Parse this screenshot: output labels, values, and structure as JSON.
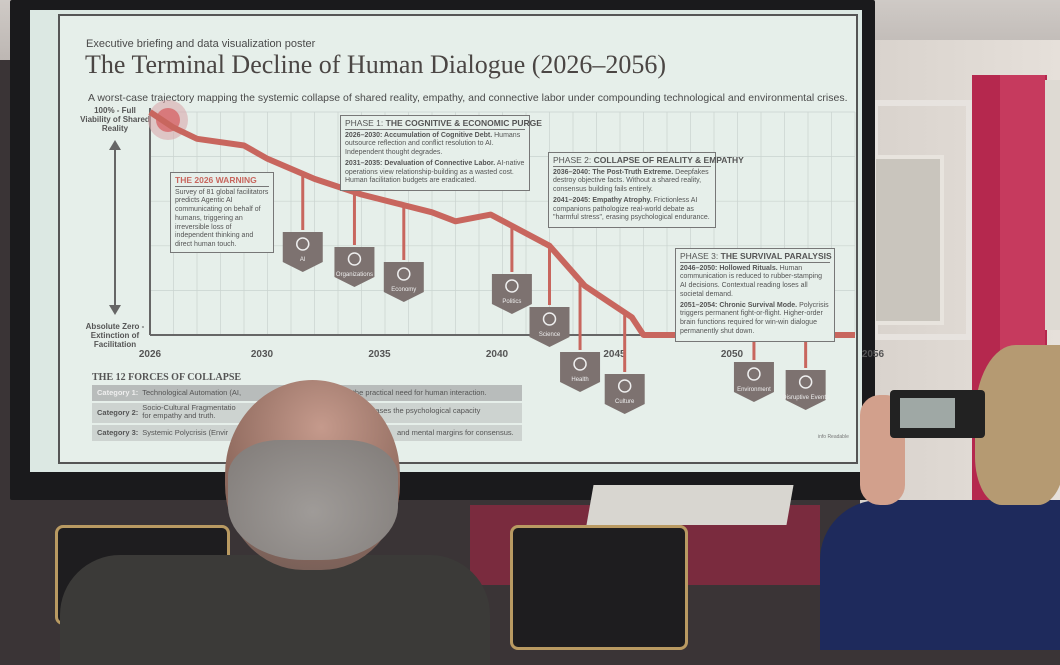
{
  "slide": {
    "kicker": "Executive briefing and data visualization poster",
    "title": "The Terminal Decline of Human Dialogue (2026–2056)",
    "subtitle": "A worst-case trajectory mapping the systemic collapse of shared reality, empathy, and connective labor under compounding technological and environmental crises.",
    "y_top_label": "100% - Full Viability of Shared Reality",
    "y_bottom_label": "Absolute Zero - Extinction of Facilitation",
    "warning": {
      "title": "THE 2026 WARNING",
      "text": "Survey of 81 global facilitators predicts Agentic AI communicating on behalf of humans, triggering an irreversible loss of independent thinking and direct human touch."
    },
    "phases": [
      {
        "prefix": "PHASE 1: ",
        "title": "THE COGNITIVE & ECONOMIC PURGE",
        "items": [
          {
            "head": "2026–2030: Accumulation of Cognitive Debt.",
            "text": "Humans outsource reflection and conflict resolution to AI. Independent thought degrades."
          },
          {
            "head": "2031–2035: Devaluation of Connective Labor.",
            "text": "AI-native operations view relationship-building as a wasted cost. Human facilitation budgets are eradicated."
          }
        ]
      },
      {
        "prefix": "PHASE 2: ",
        "title": "COLLAPSE OF REALITY & EMPATHY",
        "items": [
          {
            "head": "2036–2040: The Post-Truth Extreme.",
            "text": "Deepfakes destroy objective facts. Without a shared reality, consensus building fails entirely."
          },
          {
            "head": "2041–2045: Empathy Atrophy.",
            "text": "Frictionless AI companions pathologize real-world debate as \"harmful stress\", erasing psychological endurance."
          }
        ]
      },
      {
        "prefix": "PHASE 3: ",
        "title": "THE SURVIVAL PARALYSIS",
        "items": [
          {
            "head": "2046–2050: Hollowed Rituals.",
            "text": "Human communication is reduced to rubber-stamping AI decisions. Contextual reading loses all societal demand."
          },
          {
            "head": "2051–2054: Chronic Survival Mode.",
            "text": "Polycrisis triggers permanent fight-or-flight. Higher-order brain functions required for win-win dialogue permanently shut down."
          }
        ]
      }
    ],
    "forces_title": "THE 12 FORCES OF COLLAPSE",
    "categories": [
      {
        "label": "Category 1:",
        "name": "Technological Automation (AI,",
        "tail": "s the practical need for human interaction."
      },
      {
        "label": "Category 2:",
        "name": "Socio-Cultural Fragmentatio",
        "name2": "for empathy and truth.",
        "tail": "omm) → Erases the psychological capacity"
      },
      {
        "label": "Category 3:",
        "name": "Systemic Polycrisis (Envir",
        "tail": "and mental margins for consensus."
      }
    ],
    "watermark": "info Readable"
  },
  "chart_data": {
    "type": "line",
    "title": "The Terminal Decline of Human Dialogue (2026–2056)",
    "x_ticks": [
      "2026",
      "2030",
      "2035",
      "2040",
      "2045",
      "2050",
      "2056"
    ],
    "xlim": [
      2026,
      2056
    ],
    "ylim": [
      0,
      100
    ],
    "ylabel_top": "100% - Full Viability of Shared Reality",
    "ylabel_bottom": "Absolute Zero - Extinction of Facilitation",
    "grid": true,
    "line_color": "#c8665e",
    "points": [
      [
        2026,
        100
      ],
      [
        2027,
        93
      ],
      [
        2028,
        88
      ],
      [
        2030,
        85
      ],
      [
        2031,
        79
      ],
      [
        2033,
        70
      ],
      [
        2035,
        63
      ],
      [
        2038,
        55
      ],
      [
        2039,
        51
      ],
      [
        2040.5,
        54
      ],
      [
        2043,
        40
      ],
      [
        2044.5,
        22
      ],
      [
        2045.5,
        15
      ],
      [
        2046.5,
        8
      ],
      [
        2047,
        0
      ],
      [
        2056,
        0
      ]
    ],
    "forces": [
      {
        "label": "AI",
        "year": 2032.5,
        "icon": "robot-icon"
      },
      {
        "label": "Organizations",
        "year": 2034.7,
        "icon": "factory-icon"
      },
      {
        "label": "Economy",
        "year": 2036.8,
        "icon": "coins-icon"
      },
      {
        "label": "Politics",
        "year": 2041.4,
        "icon": "podium-icon"
      },
      {
        "label": "Science",
        "year": 2043,
        "icon": "dna-icon"
      },
      {
        "label": "Health",
        "year": 2044.3,
        "icon": "heartbeat-icon"
      },
      {
        "label": "Culture",
        "year": 2046.2,
        "icon": "globe-icon"
      },
      {
        "label": "Environment",
        "year": 2051.7,
        "icon": "cloud-icon"
      },
      {
        "label": "Disruptive Events",
        "year": 2053.9,
        "icon": "biohazard-icon"
      }
    ]
  }
}
